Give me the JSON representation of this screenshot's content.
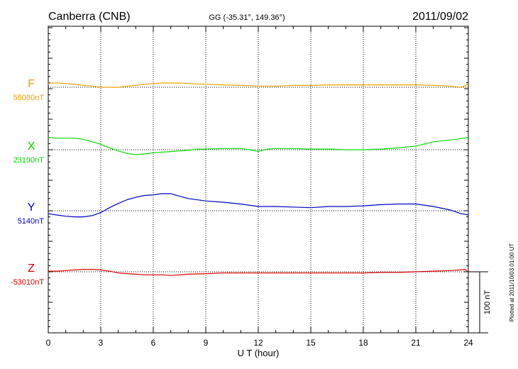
{
  "header": {
    "station": "Canberra (CNB)",
    "coords": "GG (-35.31°, 149.36°)",
    "date": "2011/09/02"
  },
  "footer_note": "Plotted at 2011/10/03 01:00 UT",
  "chart_data": {
    "type": "line",
    "xlabel": "U T (hour)",
    "xlim": [
      0,
      24
    ],
    "xticks": [
      0,
      3,
      6,
      9,
      12,
      15,
      18,
      21,
      24
    ],
    "grid": true,
    "scale_bar": {
      "label": "100 nT",
      "value_nT": 100
    },
    "series": [
      {
        "name": "F",
        "baseline_label": "58080nT",
        "baseline": 58080,
        "color": "#f0a000",
        "x": [
          0,
          0.5,
          1.0,
          1.5,
          2.0,
          2.5,
          3.0,
          3.5,
          4.0,
          4.5,
          5.0,
          5.5,
          6.0,
          6.5,
          7.0,
          7.5,
          8.0,
          9.0,
          10.0,
          11.0,
          12.0,
          13.0,
          14.0,
          15.0,
          16.0,
          17.0,
          18.0,
          19.0,
          20.0,
          21.0,
          22.0,
          23.0,
          23.5,
          23.8,
          24.0
        ],
        "values": [
          58087,
          58087,
          58086,
          58085,
          58083,
          58082,
          58080,
          58080,
          58080,
          58082,
          58083,
          58085,
          58086,
          58087,
          58087,
          58087,
          58086,
          58085,
          58084,
          58083,
          58082,
          58082,
          58083,
          58083,
          58084,
          58084,
          58084,
          58084,
          58084,
          58084,
          58083,
          58082,
          58080,
          58082,
          58087
        ]
      },
      {
        "name": "X",
        "baseline_label": "23190nT",
        "baseline": 23190,
        "color": "#00dd00",
        "x": [
          0,
          0.5,
          1.0,
          1.5,
          2.0,
          2.5,
          3.0,
          3.5,
          4.0,
          4.5,
          5.0,
          5.5,
          6.0,
          6.5,
          7.0,
          7.5,
          8.0,
          8.5,
          9.0,
          10.0,
          11.0,
          11.5,
          12.0,
          12.5,
          13.0,
          14.0,
          15.0,
          16.0,
          17.0,
          18.0,
          19.0,
          20.0,
          21.0,
          22.0,
          23.0,
          24.0
        ],
        "values": [
          23210,
          23209,
          23209,
          23209,
          23207,
          23203,
          23199,
          23193,
          23188,
          23184,
          23182,
          23183,
          23185,
          23186,
          23187,
          23188,
          23189,
          23191,
          23191,
          23192,
          23192,
          23190,
          23187,
          23191,
          23192,
          23192,
          23191,
          23191,
          23190,
          23190,
          23191,
          23193,
          23196,
          23203,
          23206,
          23210
        ]
      },
      {
        "name": "Y",
        "baseline_label": "5140nT",
        "baseline": 5140,
        "color": "#0000cc",
        "x": [
          0,
          0.5,
          1.0,
          1.5,
          2.0,
          2.5,
          3.0,
          3.5,
          4.0,
          4.5,
          5.0,
          5.5,
          6.0,
          6.5,
          7.0,
          7.5,
          8.0,
          9.0,
          10.0,
          11.0,
          12.0,
          13.0,
          14.0,
          15.0,
          16.0,
          17.0,
          18.0,
          19.0,
          20.0,
          21.0,
          22.0,
          23.0,
          23.5,
          24.0
        ],
        "values": [
          5135,
          5133,
          5131,
          5130,
          5130,
          5132,
          5137,
          5145,
          5152,
          5158,
          5162,
          5165,
          5166,
          5168,
          5168,
          5164,
          5160,
          5156,
          5154,
          5151,
          5147,
          5147,
          5146,
          5145,
          5147,
          5147,
          5148,
          5150,
          5151,
          5151,
          5147,
          5141,
          5136,
          5133
        ]
      },
      {
        "name": "Z",
        "baseline_label": "-53010nT",
        "baseline": -53010,
        "color": "#dd0000",
        "x": [
          0,
          0.5,
          1.0,
          1.5,
          2.0,
          2.5,
          3.0,
          3.5,
          4.0,
          4.5,
          5.0,
          5.5,
          6.0,
          6.5,
          7.0,
          7.5,
          8.0,
          9.0,
          10.0,
          11.0,
          12.0,
          13.0,
          14.0,
          15.0,
          16.0,
          17.0,
          18.0,
          19.0,
          20.0,
          21.0,
          22.0,
          23.0,
          23.5,
          23.8,
          24.0
        ],
        "values": [
          -53009,
          -53009,
          -53008,
          -53007,
          -53006,
          -53006,
          -53007,
          -53009,
          -53012,
          -53013,
          -53014,
          -53015,
          -53015,
          -53015,
          -53016,
          -53015,
          -53014,
          -53013,
          -53012,
          -53012,
          -53012,
          -53012,
          -53012,
          -53012,
          -53012,
          -53012,
          -53012,
          -53011,
          -53011,
          -53010,
          -53009,
          -53008,
          -53007,
          -53006,
          -53010
        ]
      }
    ]
  }
}
